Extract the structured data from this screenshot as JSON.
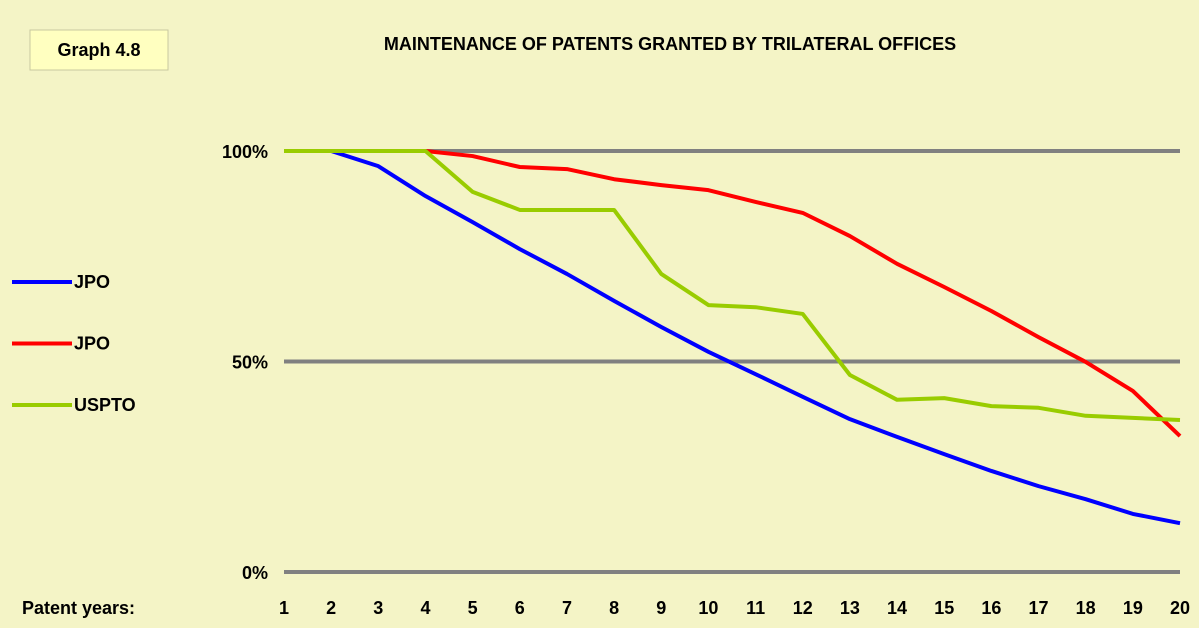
{
  "chart_data": {
    "type": "line",
    "tag": "Graph 4.8",
    "title": "MAINTENANCE OF PATENTS GRANTED BY TRILATERAL OFFICES",
    "xlabel": "Patent years:",
    "x": [
      1,
      2,
      3,
      4,
      5,
      6,
      7,
      8,
      9,
      10,
      11,
      12,
      13,
      14,
      15,
      16,
      17,
      18,
      19,
      20
    ],
    "xlim": [
      1,
      20
    ],
    "xticks": [
      1,
      2,
      3,
      4,
      5,
      6,
      7,
      8,
      9,
      10,
      11,
      12,
      13,
      14,
      15,
      16,
      17,
      18,
      19,
      20
    ],
    "ylim": [
      0,
      100
    ],
    "yticks": [
      {
        "value": 0,
        "label": "0%"
      },
      {
        "value": 50,
        "label": "50%"
      },
      {
        "value": 100,
        "label": "100%"
      }
    ],
    "grid": true,
    "legend": "left",
    "series": [
      {
        "name": "JPO",
        "color": "#0000ff",
        "values": [
          100,
          100,
          96.4,
          89.3,
          83.1,
          76.7,
          70.8,
          64.4,
          58.2,
          52.3,
          47,
          41.6,
          36.3,
          32.1,
          28,
          24,
          20.4,
          17.3,
          13.8,
          11.6
        ]
      },
      {
        "name": "JPO",
        "color": "#ff0000",
        "values": [
          100,
          100,
          100,
          100,
          98.8,
          96.2,
          95.7,
          93.3,
          91.9,
          90.7,
          87.9,
          85.3,
          79.8,
          73.2,
          67.7,
          62,
          55.8,
          49.9,
          43,
          32.3
        ]
      },
      {
        "name": "USPTO",
        "color": "#99cc00",
        "values": [
          100,
          100,
          100,
          100,
          90.3,
          86,
          86,
          86,
          70.8,
          63.4,
          62.9,
          61.3,
          46.8,
          40.9,
          41.3,
          39.4,
          39,
          37.1,
          36.6,
          36.1
        ]
      }
    ]
  }
}
